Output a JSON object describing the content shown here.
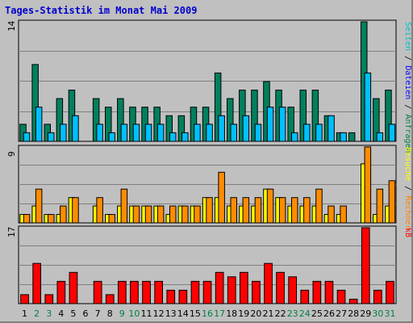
{
  "chart_data": {
    "type": "bar",
    "title": "Tages-Statistik im Monat Mai 2009",
    "categories": [
      "1",
      "2",
      "3",
      "4",
      "5",
      "6",
      "7",
      "8",
      "9",
      "10",
      "11",
      "12",
      "13",
      "14",
      "15",
      "16",
      "17",
      "18",
      "19",
      "20",
      "21",
      "22",
      "23",
      "24",
      "25",
      "26",
      "27",
      "28",
      "29",
      "30",
      "31"
    ],
    "category_colors": [
      "#000000",
      "#008040",
      "#008040",
      "#000000",
      "#000000",
      "#000000",
      "#000000",
      "#000000",
      "#008040",
      "#008040",
      "#000000",
      "#000000",
      "#000000",
      "#000000",
      "#000000",
      "#008040",
      "#008040",
      "#000000",
      "#000000",
      "#000000",
      "#000000",
      "#000000",
      "#008040",
      "#008040",
      "#000000",
      "#000000",
      "#000000",
      "#000000",
      "#000000",
      "#008040",
      "#008040"
    ],
    "panels": [
      {
        "id": "requests",
        "ymax_label": "14",
        "ymax": 14,
        "right_labels": [
          {
            "text": "Anfragen",
            "color": "#008040"
          },
          {
            "text": " / ",
            "color": "#000000"
          },
          {
            "text": "Dateien",
            "color": "#0000ff"
          },
          {
            "text": " / ",
            "color": "#000000"
          },
          {
            "text": "Seiten",
            "color": "#00c0c0"
          }
        ],
        "series": [
          {
            "name": "Anfragen",
            "color": "#00805e",
            "values": [
              2,
              9,
              2,
              5,
              6,
              0,
              5,
              4,
              5,
              4,
              4,
              4,
              3,
              3,
              4,
              4,
              8,
              5,
              6,
              6,
              7,
              6,
              4,
              6,
              6,
              3,
              1,
              1,
              14,
              5,
              6
            ]
          },
          {
            "name": "Dateien",
            "color": "#00bfff",
            "values": [
              1,
              4,
              1,
              2,
              3,
              0,
              2,
              1,
              2,
              2,
              2,
              2,
              1,
              1,
              2,
              2,
              3,
              2,
              3,
              2,
              4,
              4,
              1,
              2,
              2,
              3,
              1,
              0,
              8,
              1,
              2
            ]
          }
        ]
      },
      {
        "id": "visits",
        "ymax_label": "9",
        "ymax": 9,
        "right_labels": [
          {
            "text": "Rechner",
            "color": "#ff8000"
          },
          {
            "text": " / ",
            "color": "#000000"
          },
          {
            "text": "Besuche",
            "color": "#ffff00"
          }
        ],
        "series": [
          {
            "name": "Besuche",
            "color": "#ffff00",
            "values": [
              1,
              2,
              1,
              1,
              3,
              0,
              2,
              1,
              2,
              2,
              2,
              2,
              1,
              2,
              2,
              3,
              3,
              2,
              2,
              2,
              4,
              3,
              2,
              2,
              2,
              1,
              1,
              0,
              7,
              1,
              2
            ]
          },
          {
            "name": "Rechner",
            "color": "#ff8c00",
            "values": [
              1,
              4,
              1,
              2,
              3,
              0,
              3,
              1,
              4,
              2,
              2,
              2,
              2,
              2,
              2,
              3,
              6,
              3,
              3,
              3,
              4,
              3,
              3,
              3,
              4,
              2,
              2,
              0,
              9,
              4,
              5
            ]
          }
        ]
      },
      {
        "id": "kb",
        "ymax_label": "17",
        "ymax": 17,
        "right_labels": [
          {
            "text": "kB",
            "color": "#ff0000"
          }
        ],
        "series": [
          {
            "name": "kB",
            "color": "#ff0000",
            "values": [
              2,
              9,
              2,
              5,
              7,
              0,
              5,
              2,
              5,
              5,
              5,
              5,
              3,
              3,
              5,
              5,
              7,
              6,
              7,
              5,
              9,
              7,
              6,
              3,
              5,
              5,
              3,
              1,
              17,
              3,
              5
            ]
          }
        ]
      }
    ]
  }
}
